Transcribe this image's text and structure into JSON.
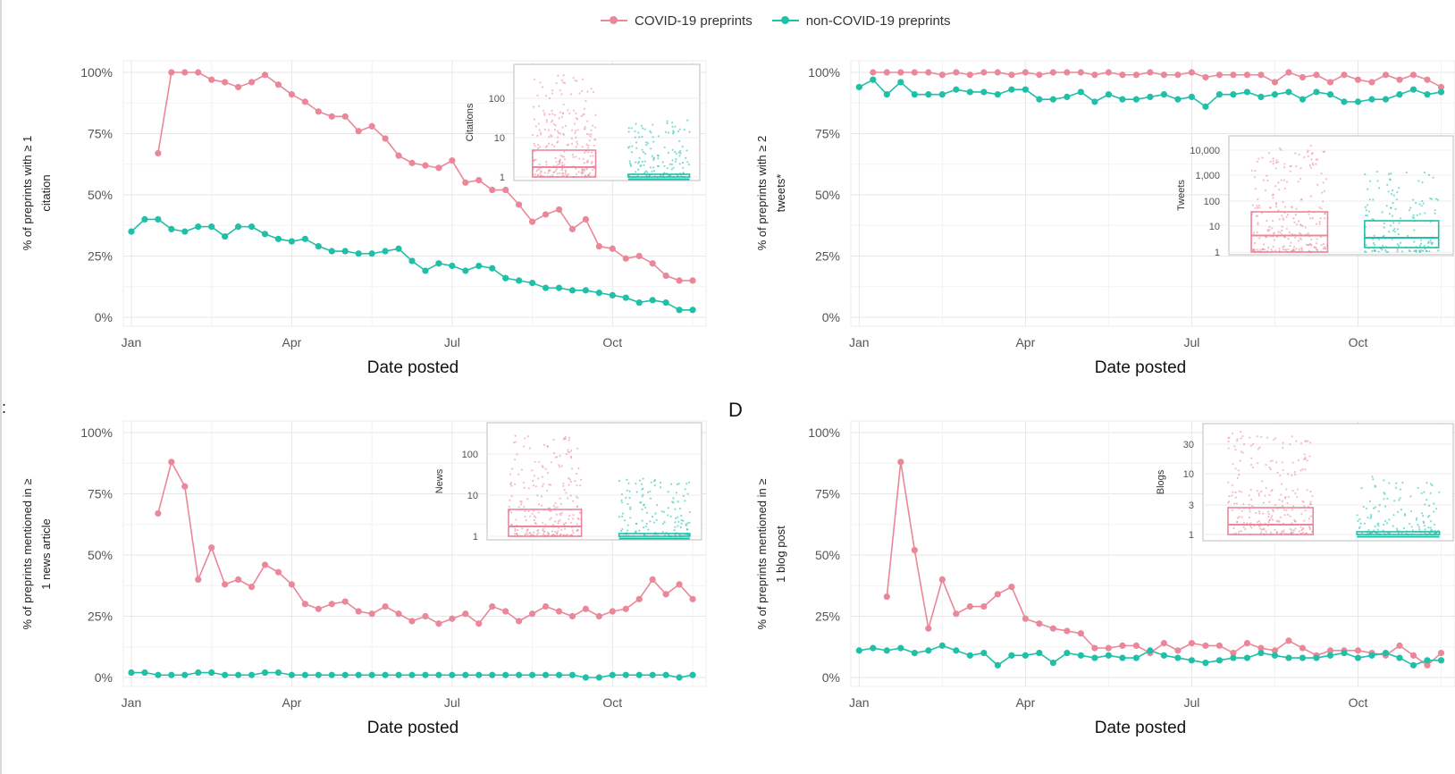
{
  "legend": {
    "covid_label": "COVID-19 preprints",
    "noncovid_label": "non-COVID-19 preprints",
    "covid_color": "#ea8799",
    "noncovid_color": "#1fbfa8"
  },
  "panel_letters": {
    "c_partial": ":",
    "d": "D"
  },
  "chart_data": [
    {
      "type": "line",
      "xlabel": "Date posted",
      "ylabel_line1": "% of preprints with ≥ 1",
      "ylabel_line2": "citation",
      "x_tick_labels": [
        "Jan",
        "Apr",
        "Jul",
        "Oct"
      ],
      "y_tick_labels": [
        "100%",
        "75%",
        "50%",
        "25%",
        "0%"
      ],
      "ylim": [
        0,
        100
      ],
      "series": [
        {
          "name": "COVID-19 preprints",
          "x": [
            1.5,
            1.75,
            2.0,
            2.25,
            2.5,
            2.75,
            3.0,
            3.25,
            3.5,
            3.75,
            4.0,
            4.25,
            4.5,
            4.75,
            5.0,
            5.25,
            5.5,
            5.75,
            6.0,
            6.25,
            6.5,
            6.75,
            7.0,
            7.25,
            7.5,
            7.75,
            8.0,
            8.25,
            8.5,
            8.75,
            9.0,
            9.25,
            9.5,
            9.75,
            10.0,
            10.25,
            10.5,
            10.75,
            11.0,
            11.25,
            11.5
          ],
          "values": [
            67,
            100,
            100,
            100,
            97,
            96,
            94,
            96,
            99,
            95,
            91,
            88,
            84,
            82,
            82,
            76,
            78,
            73,
            66,
            63,
            62,
            61,
            64,
            55,
            56,
            52,
            52,
            46,
            39,
            42,
            44,
            36,
            40,
            29,
            28,
            24,
            25,
            22,
            17,
            15,
            15
          ]
        },
        {
          "name": "non-COVID-19 preprints",
          "x": [
            1.0,
            1.25,
            1.5,
            1.75,
            2.0,
            2.25,
            2.5,
            2.75,
            3.0,
            3.25,
            3.5,
            3.75,
            4.0,
            4.25,
            4.5,
            4.75,
            5.0,
            5.25,
            5.5,
            5.75,
            6.0,
            6.25,
            6.5,
            6.75,
            7.0,
            7.25,
            7.5,
            7.75,
            8.0,
            8.25,
            8.5,
            8.75,
            9.0,
            9.25,
            9.5,
            9.75,
            10.0,
            10.25,
            10.5,
            10.75,
            11.0,
            11.25,
            11.5
          ],
          "values": [
            35,
            40,
            40,
            36,
            35,
            37,
            37,
            33,
            37,
            37,
            34,
            32,
            31,
            32,
            29,
            27,
            27,
            26,
            26,
            27,
            28,
            23,
            19,
            22,
            21,
            19,
            21,
            20,
            16,
            15,
            14,
            12,
            12,
            11,
            11,
            10,
            9,
            8,
            6,
            7,
            6,
            3,
            3
          ]
        }
      ],
      "inset": {
        "type": "box",
        "ylabel": "Citations",
        "y_tick_labels": [
          "100",
          "10",
          "1"
        ]
      }
    },
    {
      "type": "line",
      "xlabel": "Date posted",
      "ylabel_line1": "% of preprints with ≥ 2",
      "ylabel_line2": "tweets*",
      "x_tick_labels": [
        "Jan",
        "Apr",
        "Jul",
        "Oct"
      ],
      "y_tick_labels": [
        "100%",
        "75%",
        "50%",
        "25%",
        "0%"
      ],
      "ylim": [
        0,
        100
      ],
      "series": [
        {
          "name": "COVID-19 preprints",
          "x": [
            1.25,
            1.5,
            1.75,
            2.0,
            2.25,
            2.5,
            2.75,
            3.0,
            3.25,
            3.5,
            3.75,
            4.0,
            4.25,
            4.5,
            4.75,
            5.0,
            5.25,
            5.5,
            5.75,
            6.0,
            6.25,
            6.5,
            6.75,
            7.0,
            7.25,
            7.5,
            7.75,
            8.0,
            8.25,
            8.5,
            8.75,
            9.0,
            9.25,
            9.5,
            9.75,
            10.0,
            10.25,
            10.5,
            10.75,
            11.0,
            11.25,
            11.5
          ],
          "values": [
            100,
            100,
            100,
            100,
            100,
            99,
            100,
            99,
            100,
            100,
            99,
            100,
            99,
            100,
            100,
            100,
            99,
            100,
            99,
            99,
            100,
            99,
            99,
            100,
            98,
            99,
            99,
            99,
            99,
            96,
            100,
            98,
            99,
            96,
            99,
            97,
            96,
            99,
            97,
            99,
            97,
            94
          ]
        },
        {
          "name": "non-COVID-19 preprints",
          "x": [
            1.0,
            1.25,
            1.5,
            1.75,
            2.0,
            2.25,
            2.5,
            2.75,
            3.0,
            3.25,
            3.5,
            3.75,
            4.0,
            4.25,
            4.5,
            4.75,
            5.0,
            5.25,
            5.5,
            5.75,
            6.0,
            6.25,
            6.5,
            6.75,
            7.0,
            7.25,
            7.5,
            7.75,
            8.0,
            8.25,
            8.5,
            8.75,
            9.0,
            9.25,
            9.5,
            9.75,
            10.0,
            10.25,
            10.5,
            10.75,
            11.0,
            11.25,
            11.5
          ],
          "values": [
            94,
            97,
            91,
            96,
            91,
            91,
            91,
            93,
            92,
            92,
            91,
            93,
            93,
            89,
            89,
            90,
            92,
            88,
            91,
            89,
            89,
            90,
            91,
            89,
            90,
            86,
            91,
            91,
            92,
            90,
            91,
            92,
            89,
            92,
            91,
            88,
            88,
            89,
            89,
            91,
            93,
            91,
            92
          ]
        }
      ],
      "inset": {
        "type": "box",
        "ylabel": "Tweets",
        "y_tick_labels": [
          "10,000",
          "1,000",
          "100",
          "10",
          "1"
        ]
      }
    },
    {
      "type": "line",
      "xlabel": "Date posted",
      "ylabel_line1": "% of preprints mentioned in ≥",
      "ylabel_line2": "1 news article",
      "x_tick_labels": [
        "Jan",
        "Apr",
        "Jul",
        "Oct"
      ],
      "y_tick_labels": [
        "100%",
        "75%",
        "50%",
        "25%",
        "0%"
      ],
      "ylim": [
        0,
        100
      ],
      "series": [
        {
          "name": "COVID-19 preprints",
          "x": [
            1.5,
            1.75,
            2.0,
            2.25,
            2.5,
            2.75,
            3.0,
            3.25,
            3.5,
            3.75,
            4.0,
            4.25,
            4.5,
            4.75,
            5.0,
            5.25,
            5.5,
            5.75,
            6.0,
            6.25,
            6.5,
            6.75,
            7.0,
            7.25,
            7.5,
            7.75,
            8.0,
            8.25,
            8.5,
            8.75,
            9.0,
            9.25,
            9.5,
            9.75,
            10.0,
            10.25,
            10.5,
            10.75,
            11.0,
            11.25,
            11.5
          ],
          "values": [
            67,
            88,
            78,
            40,
            53,
            38,
            40,
            37,
            46,
            43,
            38,
            30,
            28,
            30,
            31,
            27,
            26,
            29,
            26,
            23,
            25,
            22,
            24,
            26,
            22,
            29,
            27,
            23,
            26,
            29,
            27,
            25,
            28,
            25,
            27,
            28,
            32,
            40,
            34,
            38,
            32
          ]
        },
        {
          "name": "non-COVID-19 preprints",
          "x": [
            1.0,
            1.25,
            1.5,
            1.75,
            2.0,
            2.25,
            2.5,
            2.75,
            3.0,
            3.25,
            3.5,
            3.75,
            4.0,
            4.25,
            4.5,
            4.75,
            5.0,
            5.25,
            5.5,
            5.75,
            6.0,
            6.25,
            6.5,
            6.75,
            7.0,
            7.25,
            7.5,
            7.75,
            8.0,
            8.25,
            8.5,
            8.75,
            9.0,
            9.25,
            9.5,
            9.75,
            10.0,
            10.25,
            10.5,
            10.75,
            11.0,
            11.25,
            11.5
          ],
          "values": [
            2,
            2,
            1,
            1,
            1,
            2,
            2,
            1,
            1,
            1,
            2,
            2,
            1,
            1,
            1,
            1,
            1,
            1,
            1,
            1,
            1,
            1,
            1,
            1,
            1,
            1,
            1,
            1,
            1,
            1,
            1,
            1,
            1,
            1,
            0,
            0,
            1,
            1,
            1,
            1,
            1,
            0,
            1
          ]
        }
      ],
      "inset": {
        "type": "box",
        "ylabel": "News",
        "y_tick_labels": [
          "100",
          "10",
          "1"
        ]
      }
    },
    {
      "type": "line",
      "xlabel": "Date posted",
      "ylabel_line1": "% of preprints mentioned in ≥",
      "ylabel_line2": "1 blog post",
      "x_tick_labels": [
        "Jan",
        "Apr",
        "Jul",
        "Oct"
      ],
      "y_tick_labels": [
        "100%",
        "75%",
        "50%",
        "25%",
        "0%"
      ],
      "ylim": [
        0,
        100
      ],
      "series": [
        {
          "name": "COVID-19 preprints",
          "x": [
            1.5,
            1.75,
            2.0,
            2.25,
            2.5,
            2.75,
            3.0,
            3.25,
            3.5,
            3.75,
            4.0,
            4.25,
            4.5,
            4.75,
            5.0,
            5.25,
            5.5,
            5.75,
            6.0,
            6.25,
            6.5,
            6.75,
            7.0,
            7.25,
            7.5,
            7.75,
            8.0,
            8.25,
            8.5,
            8.75,
            9.0,
            9.25,
            9.5,
            9.75,
            10.0,
            10.25,
            10.5,
            10.75,
            11.0,
            11.25,
            11.5
          ],
          "values": [
            33,
            88,
            52,
            20,
            40,
            26,
            29,
            29,
            34,
            37,
            24,
            22,
            20,
            19,
            18,
            12,
            12,
            13,
            13,
            10,
            14,
            11,
            14,
            13,
            13,
            10,
            14,
            12,
            11,
            15,
            12,
            9,
            11,
            11,
            11,
            10,
            9,
            13,
            9,
            5,
            10
          ]
        },
        {
          "name": "non-COVID-19 preprints",
          "x": [
            1.0,
            1.25,
            1.5,
            1.75,
            2.0,
            2.25,
            2.5,
            2.75,
            3.0,
            3.25,
            3.5,
            3.75,
            4.0,
            4.25,
            4.5,
            4.75,
            5.0,
            5.25,
            5.5,
            5.75,
            6.0,
            6.25,
            6.5,
            6.75,
            7.0,
            7.25,
            7.5,
            7.75,
            8.0,
            8.25,
            8.5,
            8.75,
            9.0,
            9.25,
            9.5,
            9.75,
            10.0,
            10.25,
            10.5,
            10.75,
            11.0,
            11.25,
            11.5
          ],
          "values": [
            11,
            12,
            11,
            12,
            10,
            11,
            13,
            11,
            9,
            10,
            5,
            9,
            9,
            10,
            6,
            10,
            9,
            8,
            9,
            8,
            8,
            11,
            9,
            8,
            7,
            6,
            7,
            8,
            8,
            10,
            9,
            8,
            8,
            8,
            9,
            10,
            8,
            9,
            10,
            8,
            5,
            7,
            7
          ]
        }
      ],
      "inset": {
        "type": "box",
        "ylabel": "Blogs",
        "y_tick_labels": [
          "30",
          "10",
          "3",
          "1"
        ]
      }
    }
  ]
}
